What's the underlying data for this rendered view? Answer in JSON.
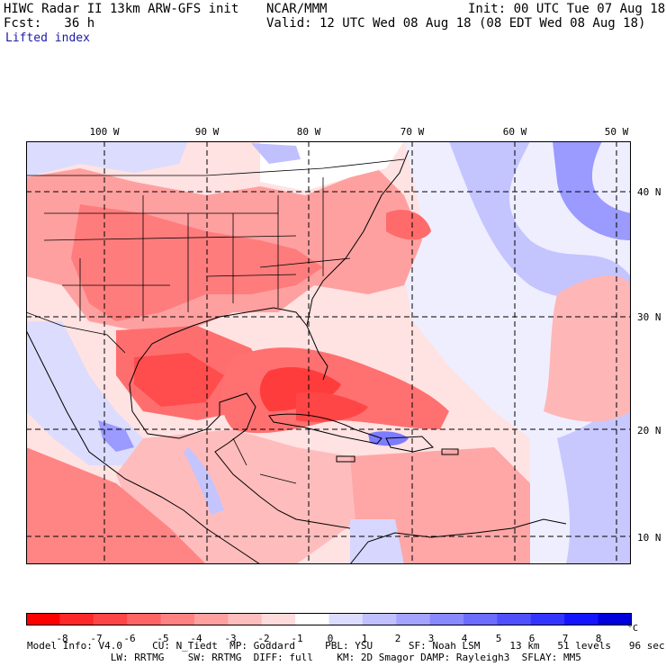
{
  "header": {
    "line1_left": "HIWC Radar II 13km ARW-GFS init",
    "line1_center": "NCAR/MMM",
    "line1_right": "Init: 00 UTC Tue 07 Aug 18",
    "line2_left": "Fcst:   36 h",
    "line2_right": "Valid: 12 UTC Wed 08 Aug 18 (08 EDT Wed 08 Aug 18)",
    "field": "Lifted index"
  },
  "map": {
    "lon_labels": [
      "100 W",
      "90 W",
      "80 W",
      "70 W",
      "60 W",
      "50 W"
    ],
    "lat_labels": [
      "40 N",
      "30 N",
      "20 N",
      "10 N"
    ],
    "palette_negative": [
      "#ff0000",
      "#ff2020",
      "#ff4a4a",
      "#ff6c6c",
      "#ff8c8c",
      "#ffa8a8",
      "#ffc2c2",
      "#ffdcdc"
    ],
    "palette_positive": [
      "#ffffff",
      "#e4e4ff",
      "#c8c8ff",
      "#acacff",
      "#9090ff",
      "#7474ff",
      "#5858ff",
      "#3c3cff",
      "#1a1aff",
      "#0000e6"
    ]
  },
  "colorbar": {
    "ticks": [
      "-8",
      "-7",
      "-6",
      "-5",
      "-4",
      "-3",
      "-2",
      "-1",
      "0",
      "1",
      "2",
      "3",
      "4",
      "5",
      "6",
      "7",
      "8"
    ],
    "unit": "°C",
    "colors": [
      "#ff0000",
      "#ff2828",
      "#ff4646",
      "#ff6464",
      "#ff8282",
      "#ffa0a0",
      "#ffbebe",
      "#ffdcdc",
      "#ffffff",
      "#dcdcff",
      "#c0c0ff",
      "#a4a4ff",
      "#8888ff",
      "#6c6cff",
      "#5050ff",
      "#3434ff",
      "#1414ff",
      "#0000dd"
    ]
  },
  "footer": {
    "line1": "Model Info: V4.0     CU: N_Tiedt  MP: Goddard     PBL: YSU      SF: Noah LSM     13 km   51 levels   96 sec",
    "line2": "              LW: RRTMG    SW: RRTMG  DIFF: full    KM: 2D Smagor DAMP: Rayleigh3  SFLAY: MM5"
  }
}
